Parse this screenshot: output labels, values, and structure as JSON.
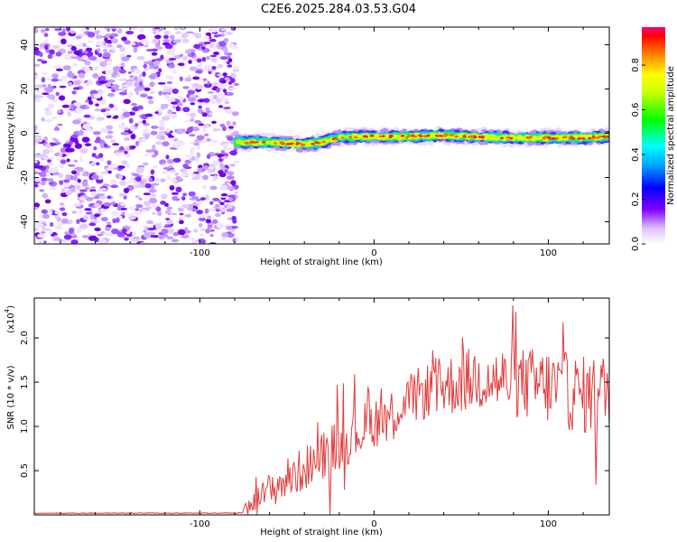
{
  "title": "C2E6.2025.284.03.53.G04",
  "chart_data": [
    {
      "type": "heatmap",
      "xlabel": "Height of straight line (km)",
      "ylabel": "Frequency (Hz)",
      "xlim": [
        -195,
        135
      ],
      "ylim": [
        -50,
        48
      ],
      "xticks": [
        -100,
        0,
        100
      ],
      "xtick_labels": [
        "-100",
        "0",
        "100"
      ],
      "yticks": [
        -40,
        -20,
        0,
        20,
        40
      ],
      "ytick_labels": [
        "-40",
        "-20",
        "0",
        "20",
        "40"
      ],
      "noise_region_x": [
        -195,
        -79
      ],
      "signal_track": {
        "x": [
          -79,
          -60,
          -50,
          -40,
          -30,
          -20,
          -10,
          0,
          20,
          40,
          60,
          80,
          100,
          120,
          135
        ],
        "freq": [
          -4,
          -4,
          -4.5,
          -5,
          -4,
          -2,
          -1.5,
          -1.5,
          -1.5,
          -1,
          -1.5,
          -2,
          -2,
          -2,
          -1.5
        ]
      },
      "colorbar": {
        "label": "Normalized spectral amplitude",
        "range": [
          0,
          0.97
        ],
        "ticks": [
          0.0,
          0.2,
          0.4,
          0.6,
          0.8
        ],
        "tick_labels": [
          "0.0",
          "0.2",
          "0.4",
          "0.6",
          "0.8"
        ]
      }
    },
    {
      "type": "line",
      "xlabel": "Height of straight line (km)",
      "ylabel": "SNR (10 * v/v)",
      "yscale_label": "(x10",
      "yscale_exp": "4",
      "xlim": [
        -195,
        135
      ],
      "ylim": [
        0,
        2.45
      ],
      "xticks": [
        -100,
        0,
        100
      ],
      "xtick_labels": [
        "-100",
        "0",
        "100"
      ],
      "yticks": [
        0.5,
        1.0,
        1.5,
        2.0
      ],
      "ytick_labels": [
        "0.5",
        "1.0",
        "1.5",
        "2.0"
      ],
      "color": "#e03c3c",
      "envelope": {
        "x": [
          -195,
          -78,
          -70,
          -60,
          -50,
          -40,
          -30,
          -20,
          -10,
          0,
          10,
          20,
          30,
          40,
          60,
          80,
          100,
          120,
          135
        ],
        "mean": [
          0.02,
          0.02,
          0.12,
          0.28,
          0.4,
          0.52,
          0.68,
          0.8,
          0.93,
          1.05,
          1.15,
          1.3,
          1.4,
          1.45,
          1.55,
          1.5,
          1.45,
          1.35,
          1.4
        ],
        "spread": [
          0.005,
          0.005,
          0.1,
          0.2,
          0.25,
          0.25,
          0.28,
          0.3,
          0.3,
          0.3,
          0.3,
          0.3,
          0.32,
          0.35,
          0.38,
          0.4,
          0.45,
          0.45,
          0.45
        ]
      }
    }
  ]
}
